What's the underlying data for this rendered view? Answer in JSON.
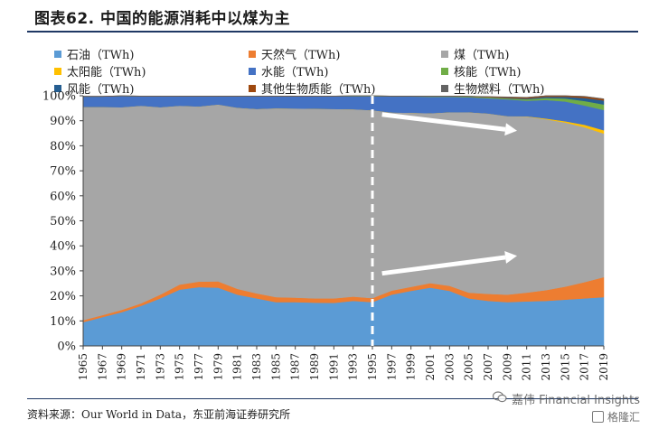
{
  "title": "图表62.  中国的能源消耗中以煤为主",
  "source": "资料来源：Our World in Data，东亚前海证券研究所",
  "watermark": {
    "line1": "嘉伟 Financial Insights",
    "line2": "格隆汇"
  },
  "chart_data": {
    "type": "area",
    "stacked_percent": true,
    "x_ticks": [
      "1965",
      "1967",
      "1969",
      "1971",
      "1973",
      "1975",
      "1977",
      "1979",
      "1981",
      "1983",
      "1985",
      "1987",
      "1989",
      "1991",
      "1993",
      "1995",
      "1997",
      "1999",
      "2001",
      "2003",
      "2005",
      "2007",
      "2009",
      "2011",
      "2013",
      "2015",
      "2017",
      "2019"
    ],
    "y_ticks": [
      "0%",
      "10%",
      "20%",
      "30%",
      "40%",
      "50%",
      "60%",
      "70%",
      "80%",
      "90%",
      "100%"
    ],
    "ylim": [
      0,
      100
    ],
    "grid": false,
    "legend_placement": "top",
    "years": [
      1965,
      1967,
      1969,
      1971,
      1973,
      1975,
      1977,
      1979,
      1981,
      1983,
      1985,
      1987,
      1989,
      1991,
      1993,
      1995,
      1997,
      1999,
      2001,
      2003,
      2005,
      2007,
      2009,
      2011,
      2013,
      2015,
      2017,
      2019
    ],
    "series": [
      {
        "name": "石油（TWh)",
        "color": "#5b9bd5",
        "values": [
          9.5,
          11.5,
          13.5,
          16,
          19,
          22.5,
          23.5,
          23.3,
          20.5,
          19,
          17.5,
          17.5,
          17.3,
          17.2,
          18,
          17.5,
          20.5,
          22,
          23.3,
          22,
          19,
          18,
          17.5,
          17.8,
          18,
          18.5,
          19,
          19.5
        ]
      },
      {
        "name": "天然气（TWh)",
        "color": "#ed7d31",
        "values": [
          0.8,
          0.8,
          0.9,
          1,
          1.5,
          2,
          2.2,
          2.5,
          2.3,
          2,
          2,
          1.8,
          1.7,
          1.8,
          1.7,
          1.6,
          1.6,
          1.6,
          1.8,
          2,
          2.3,
          2.8,
          3,
          3.5,
          4.3,
          5.2,
          6.5,
          8
        ]
      },
      {
        "name": "煤（TWh)",
        "color": "#a6a6a6",
        "values": [
          85.2,
          83.2,
          81,
          79,
          74.9,
          71.5,
          70,
          70.7,
          72.4,
          73.7,
          75.5,
          75.6,
          75.8,
          75.7,
          74.9,
          75.1,
          71.2,
          69.6,
          67.9,
          69.4,
          72.1,
          72.1,
          71.3,
          70.4,
          68.3,
          65.6,
          61.9,
          57.4
        ]
      },
      {
        "name": "太阳能（TWh)",
        "color": "#ffc000",
        "values": [
          0,
          0,
          0,
          0,
          0,
          0,
          0,
          0,
          0,
          0,
          0,
          0,
          0,
          0,
          0,
          0,
          0,
          0,
          0,
          0,
          0,
          0,
          0.05,
          0.1,
          0.3,
          0.5,
          1,
          1.3
        ]
      },
      {
        "name": "水能（TWh)",
        "color": "#4472c4",
        "values": [
          4.2,
          4.2,
          4.5,
          3.8,
          4.4,
          3.8,
          4.1,
          3.3,
          4.6,
          5.1,
          4.8,
          4.9,
          5,
          5.1,
          5.2,
          5.6,
          6.4,
          6.5,
          6.6,
          6.2,
          6,
          6.1,
          6.7,
          6.2,
          7.4,
          7.9,
          7.7,
          8.1
        ]
      },
      {
        "name": "核能（TWh)",
        "color": "#70ad47",
        "values": [
          0,
          0,
          0,
          0,
          0,
          0,
          0,
          0,
          0,
          0,
          0,
          0,
          0,
          0,
          0.1,
          0.1,
          0.1,
          0.1,
          0.2,
          0.2,
          0.3,
          0.4,
          0.4,
          0.6,
          0.8,
          1.2,
          1.8,
          2.2
        ]
      },
      {
        "name": "风能（TWh)",
        "color": "#255e91",
        "values": [
          0,
          0,
          0,
          0,
          0,
          0,
          0,
          0,
          0,
          0,
          0,
          0,
          0,
          0,
          0,
          0,
          0,
          0,
          0,
          0,
          0,
          0,
          0.2,
          0.3,
          0.5,
          0.7,
          1.2,
          1.6
        ]
      },
      {
        "name": "其他生物质能（TWh)",
        "color": "#9e480e",
        "values": [
          0.1,
          0.1,
          0.1,
          0.1,
          0.1,
          0.1,
          0.1,
          0.1,
          0.1,
          0.1,
          0.1,
          0.1,
          0.1,
          0.1,
          0.1,
          0.1,
          0.1,
          0.1,
          0.1,
          0.1,
          0.1,
          0.2,
          0.3,
          0.4,
          0.5,
          0.5,
          0.6,
          0.6
        ]
      },
      {
        "name": "生物燃料（TWh)",
        "color": "#636363",
        "values": [
          0,
          0,
          0,
          0,
          0,
          0,
          0,
          0,
          0,
          0,
          0,
          0,
          0,
          0,
          0,
          0,
          0,
          0,
          0,
          0,
          0.05,
          0.1,
          0.1,
          0.1,
          0.1,
          0.1,
          0.1,
          0.1
        ]
      }
    ],
    "annotations": [
      {
        "type": "dashed-vertical-line",
        "year": 1995
      },
      {
        "type": "arrow",
        "from_year": 1996,
        "from_value": 92.5,
        "to_year": 2010,
        "to_value": 86
      },
      {
        "type": "arrow",
        "from_year": 1996,
        "from_value": 29,
        "to_year": 2010,
        "to_value": 36
      }
    ]
  }
}
